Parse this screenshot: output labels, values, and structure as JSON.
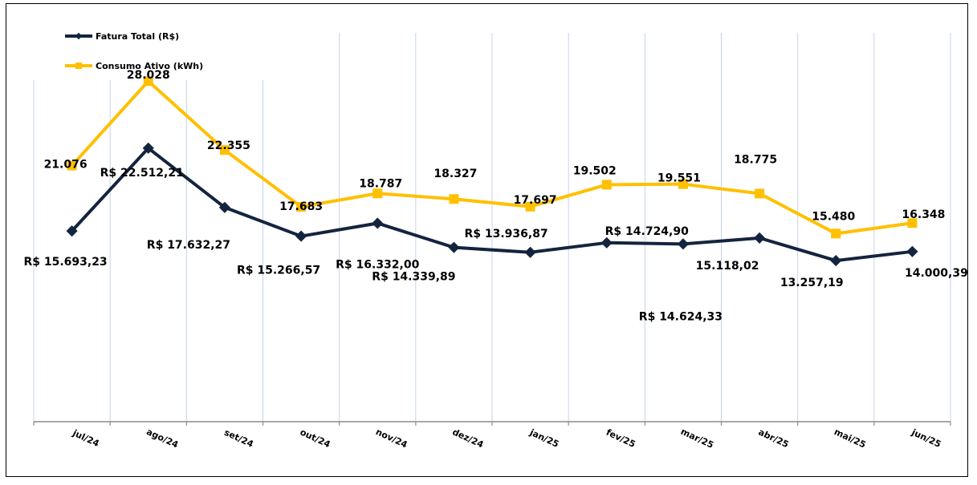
{
  "chart_data": {
    "type": "line",
    "title": "",
    "xlabel": "",
    "ylabel": "",
    "ylim": [
      0,
      32000
    ],
    "grid": "vertical",
    "legend_position": "top-left",
    "categories": [
      "jul/24",
      "ago/24",
      "set/24",
      "out/24",
      "nov/24",
      "dez/24",
      "jan/25",
      "fev/25",
      "mar/25",
      "abr/25",
      "mai/25",
      "jun/25"
    ],
    "series": [
      {
        "name": "Fatura Total (R$)",
        "color": "#14243f",
        "marker": "diamond",
        "values": [
          15693.23,
          22512.21,
          17632.27,
          15266.57,
          16332.0,
          14339.89,
          13936.87,
          14724.9,
          14624.33,
          15118.02,
          13257.19,
          14000.39
        ],
        "labels": [
          "R$ 15.693,23",
          "R$ 22.512,21",
          "R$ 17.632,27",
          "R$ 15.266,57",
          "R$ 16.332,00",
          "R$ 14.339,89",
          "R$ 13.936,87",
          "R$ 14.724,90",
          "R$ 14.624,33",
          "15.118,02",
          "13.257,19",
          "14.000,39"
        ]
      },
      {
        "name": "Consumo Ativo (kWh)",
        "color": "#ffc000",
        "marker": "square",
        "values": [
          21076,
          28028,
          22355,
          17683,
          18787,
          18327,
          17697,
          19502,
          19551,
          18775,
          15480,
          16348
        ],
        "labels": [
          "21.076",
          "28.028",
          "22.355",
          "17.683",
          "18.787",
          "18.327",
          "17.697",
          "19.502",
          "19.551",
          "18.775",
          "15.480",
          "16.348"
        ]
      }
    ]
  }
}
